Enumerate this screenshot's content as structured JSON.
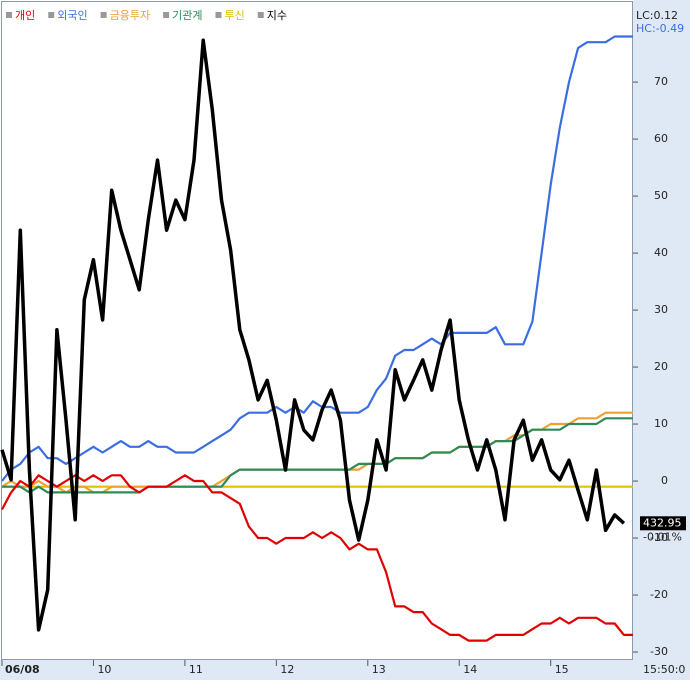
{
  "chart_data": {
    "type": "line",
    "annotations": {
      "lc": "LC:0.12",
      "hc": "HC:-0.49",
      "last_value": "432.95",
      "last_change": "-0.01%",
      "end_time": "15:50:0"
    },
    "series": [
      {
        "name": "개인",
        "color": "#e00000",
        "values": [
          -5,
          -2,
          0,
          -1,
          1,
          0,
          -1,
          0,
          1,
          0,
          1,
          0,
          1,
          1,
          -1,
          -2,
          -1,
          -1,
          -1,
          0,
          1,
          0,
          0,
          -2,
          -2,
          -3,
          -4,
          -8,
          -10,
          -10,
          -11,
          -10,
          -10,
          -10,
          -9,
          -10,
          -9,
          -10,
          -12,
          -11,
          -12,
          -12,
          -16,
          -22,
          -22,
          -23,
          -23,
          -25,
          -26,
          -27,
          -27,
          -28,
          -28,
          -28,
          -27,
          -27,
          -27,
          -27,
          -26,
          -25,
          -25,
          -24,
          -25,
          -24,
          -24,
          -24,
          -25,
          -25,
          -27,
          -27
        ]
      },
      {
        "name": "외국인",
        "color": "#3a6ee0",
        "values": [
          0,
          2,
          3,
          5,
          6,
          4,
          4,
          3,
          4,
          5,
          6,
          5,
          6,
          7,
          6,
          6,
          7,
          6,
          6,
          5,
          5,
          5,
          6,
          7,
          8,
          9,
          11,
          12,
          12,
          12,
          13,
          12,
          13,
          12,
          14,
          13,
          13,
          12,
          12,
          12,
          13,
          16,
          18,
          22,
          23,
          23,
          24,
          25,
          24,
          26,
          26,
          26,
          26,
          26,
          27,
          24,
          24,
          24,
          28,
          40,
          52,
          62,
          70,
          76,
          77,
          77,
          77,
          78,
          78,
          78
        ]
      },
      {
        "name": "금융투자",
        "color": "#f0a030",
        "values": [
          -1,
          0,
          -1,
          -1,
          0,
          -1,
          -1,
          -2,
          -1,
          -1,
          -2,
          -2,
          -1,
          -1,
          -1,
          -1,
          -1,
          -1,
          -1,
          -1,
          -1,
          -1,
          -1,
          -1,
          0,
          1,
          2,
          2,
          2,
          2,
          2,
          2,
          2,
          2,
          2,
          2,
          2,
          2,
          2,
          2,
          3,
          3,
          3,
          4,
          4,
          4,
          4,
          5,
          5,
          5,
          6,
          6,
          6,
          6,
          7,
          7,
          8,
          8,
          9,
          9,
          10,
          10,
          10,
          11,
          11,
          11,
          12,
          12,
          12,
          12
        ]
      },
      {
        "name": "기관계",
        "color": "#2e8b57",
        "values": [
          -1,
          -1,
          -1,
          -2,
          -1,
          -2,
          -2,
          -2,
          -2,
          -2,
          -2,
          -2,
          -2,
          -2,
          -2,
          -2,
          -1,
          -1,
          -1,
          -1,
          -1,
          -1,
          -1,
          -1,
          -1,
          1,
          2,
          2,
          2,
          2,
          2,
          2,
          2,
          2,
          2,
          2,
          2,
          2,
          2,
          3,
          3,
          3,
          3,
          4,
          4,
          4,
          4,
          5,
          5,
          5,
          6,
          6,
          6,
          6,
          7,
          7,
          7,
          8,
          9,
          9,
          9,
          9,
          10,
          10,
          10,
          10,
          11,
          11,
          11,
          11
        ]
      },
      {
        "name": "투신",
        "color": "#e0c000",
        "values": [
          -1,
          -1,
          -1,
          -1,
          -1,
          -1,
          -1,
          -1,
          -1,
          -1,
          -1,
          -1,
          -1,
          -1,
          -1,
          -1,
          -1,
          -1,
          -1,
          -1,
          -1,
          -1,
          -1,
          -1,
          -1,
          -1,
          -1,
          -1,
          -1,
          -1,
          -1,
          -1,
          -1,
          -1,
          -1,
          -1,
          -1,
          -1,
          -1,
          -1,
          -1,
          -1,
          -1,
          -1,
          -1,
          -1,
          -1,
          -1,
          -1,
          -1,
          -1,
          -1,
          -1,
          -1,
          -1,
          -1,
          -1,
          -1,
          -1,
          -1,
          -1,
          -1,
          -1,
          -1,
          -1,
          -1,
          -1,
          -1,
          -1,
          -1
        ]
      },
      {
        "name": "지수",
        "color": "#000000",
        "axis": "y2",
        "values": [
          434.0,
          433.57,
          437.13,
          433.71,
          431.43,
          432.0,
          435.71,
          434.42,
          433.0,
          436.14,
          436.71,
          435.85,
          437.7,
          437.13,
          436.71,
          436.28,
          437.28,
          438.13,
          437.13,
          437.56,
          437.28,
          438.13,
          439.84,
          438.85,
          437.56,
          436.85,
          435.71,
          435.28,
          434.71,
          434.99,
          434.42,
          433.71,
          434.71,
          434.28,
          434.14,
          434.57,
          434.85,
          434.42,
          433.28,
          432.71,
          433.28,
          434.14,
          433.71,
          435.14,
          434.71,
          434.99,
          435.28,
          434.85,
          435.42,
          435.85,
          434.71,
          434.14,
          433.71,
          434.14,
          433.71,
          433.0,
          434.14,
          434.42,
          433.85,
          434.14,
          433.71,
          433.57,
          433.85,
          433.42,
          433.0,
          433.71,
          432.85,
          433.07,
          432.95,
          null
        ]
      }
    ],
    "xlim": [
      0,
      69
    ],
    "xticks": [
      {
        "value": 0,
        "label": "06/08"
      },
      {
        "value": 10,
        "label": "10"
      },
      {
        "value": 20,
        "label": "11"
      },
      {
        "value": 30,
        "label": "12"
      },
      {
        "value": 40,
        "label": "13"
      },
      {
        "value": 50,
        "label": "14"
      },
      {
        "value": 60,
        "label": "15"
      }
    ],
    "ylim": [
      -31.4,
      83
    ],
    "yticks": [
      -30,
      -20,
      -10,
      0,
      10,
      20,
      30,
      40,
      50,
      60,
      70
    ],
    "y2lim": [
      431,
      440.3
    ]
  }
}
